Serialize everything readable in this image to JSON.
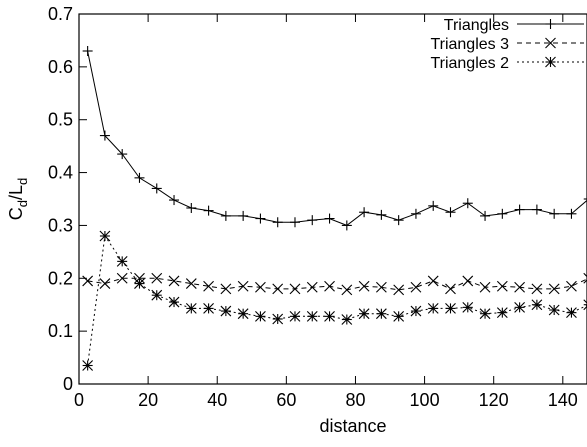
{
  "chart_data": {
    "type": "line",
    "title": "",
    "xlabel": "distance",
    "ylabel": {
      "main": "C",
      "main_sub": "d",
      "sep": "/",
      "den": "L",
      "den_sub": "d"
    },
    "xlim": [
      0,
      147
    ],
    "ylim": [
      0,
      0.7
    ],
    "xticks": [
      0,
      20,
      40,
      60,
      80,
      100,
      120,
      140
    ],
    "yticks": [
      0,
      0.1,
      0.2,
      0.3,
      0.4,
      0.5,
      0.6,
      0.7
    ],
    "ytick_labels": [
      "0",
      "0.1",
      "0.2",
      "0.3",
      "0.4",
      "0.5",
      "0.6",
      "0.7"
    ],
    "grid": false,
    "legend_position": "top-right",
    "x": [
      2.5,
      7.5,
      12.5,
      17.5,
      22.5,
      27.5,
      32.5,
      37.5,
      42.5,
      47.5,
      52.5,
      57.5,
      62.5,
      67.5,
      72.5,
      77.5,
      82.5,
      87.5,
      92.5,
      97.5,
      102.5,
      107.5,
      112.5,
      117.5,
      122.5,
      127.5,
      132.5,
      137.5,
      142.5,
      147.5
    ],
    "series": [
      {
        "name": "Triangles",
        "marker": "plus",
        "line": "solid",
        "values": [
          0.63,
          0.47,
          0.435,
          0.39,
          0.37,
          0.348,
          0.333,
          0.328,
          0.318,
          0.318,
          0.313,
          0.306,
          0.306,
          0.31,
          0.313,
          0.3,
          0.325,
          0.32,
          0.31,
          0.322,
          0.337,
          0.325,
          0.342,
          0.318,
          0.322,
          0.33,
          0.33,
          0.322,
          0.322,
          0.35
        ]
      },
      {
        "name": "Triangles 3",
        "marker": "x",
        "line": "dashed",
        "values": [
          0.195,
          0.19,
          0.2,
          0.2,
          0.2,
          0.195,
          0.19,
          0.185,
          0.18,
          0.185,
          0.183,
          0.18,
          0.18,
          0.183,
          0.185,
          0.178,
          0.185,
          0.183,
          0.178,
          0.183,
          0.195,
          0.18,
          0.195,
          0.183,
          0.185,
          0.183,
          0.18,
          0.18,
          0.185,
          0.2
        ]
      },
      {
        "name": "Triangles 2",
        "marker": "star",
        "line": "dotted",
        "values": [
          0.035,
          0.28,
          0.232,
          0.19,
          0.168,
          0.155,
          0.143,
          0.143,
          0.138,
          0.133,
          0.128,
          0.123,
          0.128,
          0.128,
          0.128,
          0.122,
          0.133,
          0.133,
          0.128,
          0.138,
          0.143,
          0.143,
          0.145,
          0.133,
          0.135,
          0.145,
          0.15,
          0.14,
          0.135,
          0.15
        ]
      }
    ]
  }
}
